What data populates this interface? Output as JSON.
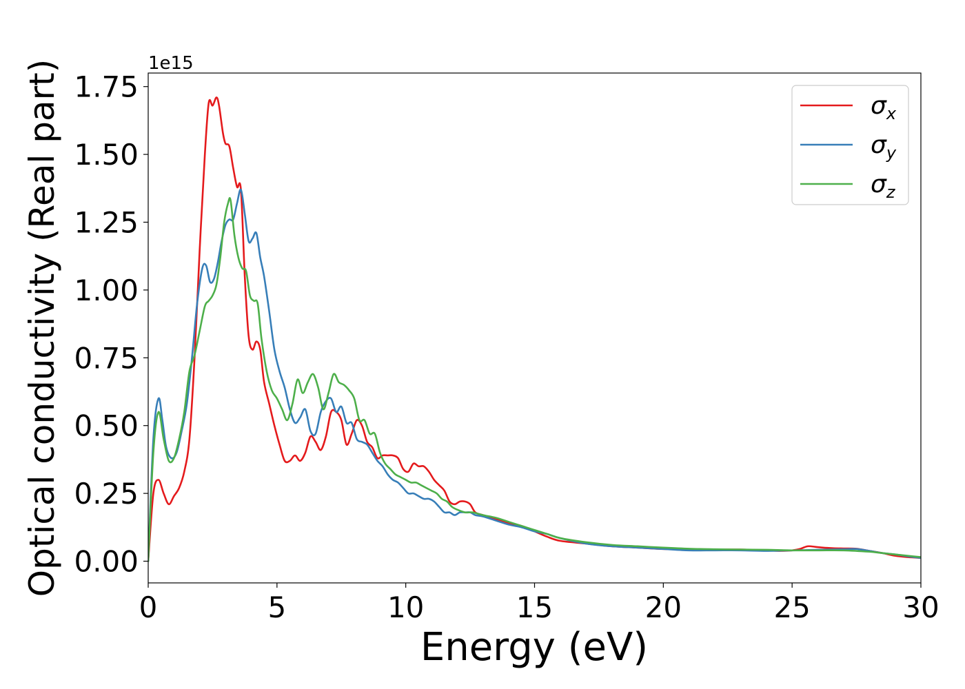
{
  "chart_data": {
    "type": "line",
    "xlabel": "Energy (eV)",
    "ylabel": "Optical conductivity (Real part)",
    "y_offset_label": "1e15",
    "xlim": [
      0,
      30
    ],
    "ylim": [
      -0.08,
      1.8
    ],
    "y_scale_factor": 1000000000000000.0,
    "xticks": [
      0,
      5,
      10,
      15,
      20,
      25,
      30
    ],
    "xtick_labels": [
      "0",
      "5",
      "10",
      "15",
      "20",
      "25",
      "30"
    ],
    "yticks": [
      0.0,
      0.25,
      0.5,
      0.75,
      1.0,
      1.25,
      1.5,
      1.75
    ],
    "ytick_labels": [
      "0.00",
      "0.25",
      "0.50",
      "0.75",
      "1.00",
      "1.25",
      "1.50",
      "1.75"
    ],
    "grid": false,
    "legend_position": "top-right",
    "series": [
      {
        "name": "σx",
        "base": "σ",
        "sub": "x",
        "color": "#e41a1c",
        "x": [
          0,
          0.2,
          0.4,
          0.6,
          0.8,
          1.0,
          1.2,
          1.4,
          1.6,
          1.8,
          2.0,
          2.2,
          2.35,
          2.5,
          2.65,
          2.75,
          2.9,
          3.0,
          3.15,
          3.3,
          3.45,
          3.6,
          3.75,
          3.9,
          4.05,
          4.2,
          4.35,
          4.5,
          4.7,
          4.9,
          5.1,
          5.3,
          5.5,
          5.7,
          5.9,
          6.1,
          6.3,
          6.5,
          6.7,
          6.9,
          7.1,
          7.3,
          7.5,
          7.7,
          7.9,
          8.1,
          8.3,
          8.5,
          8.7,
          8.9,
          9.1,
          9.3,
          9.5,
          9.7,
          9.9,
          10.1,
          10.3,
          10.5,
          10.7,
          10.9,
          11.1,
          11.3,
          11.5,
          11.7,
          11.9,
          12.1,
          12.3,
          12.5,
          12.7,
          13.0,
          13.5,
          14.0,
          14.5,
          15.0,
          15.5,
          16.0,
          17.0,
          18.0,
          19.0,
          20.0,
          21.0,
          22.0,
          23.0,
          24.0,
          24.5,
          25.0,
          25.3,
          25.6,
          25.9,
          26.2,
          26.6,
          27.0,
          27.5,
          28.0,
          28.5,
          29.0,
          29.5,
          30.0
        ],
        "y": [
          0.0,
          0.25,
          0.3,
          0.25,
          0.21,
          0.24,
          0.27,
          0.33,
          0.45,
          0.75,
          1.15,
          1.5,
          1.69,
          1.68,
          1.71,
          1.68,
          1.58,
          1.54,
          1.53,
          1.45,
          1.38,
          1.37,
          1.05,
          0.83,
          0.78,
          0.81,
          0.78,
          0.66,
          0.58,
          0.5,
          0.43,
          0.37,
          0.37,
          0.39,
          0.37,
          0.4,
          0.46,
          0.44,
          0.41,
          0.46,
          0.55,
          0.55,
          0.52,
          0.43,
          0.47,
          0.52,
          0.5,
          0.44,
          0.42,
          0.38,
          0.39,
          0.39,
          0.39,
          0.38,
          0.34,
          0.33,
          0.36,
          0.35,
          0.35,
          0.33,
          0.3,
          0.28,
          0.26,
          0.22,
          0.21,
          0.22,
          0.22,
          0.21,
          0.18,
          0.17,
          0.155,
          0.14,
          0.13,
          0.11,
          0.09,
          0.075,
          0.065,
          0.055,
          0.05,
          0.045,
          0.045,
          0.043,
          0.043,
          0.04,
          0.038,
          0.04,
          0.045,
          0.055,
          0.053,
          0.05,
          0.048,
          0.047,
          0.046,
          0.038,
          0.03,
          0.02,
          0.015,
          0.012
        ]
      },
      {
        "name": "σy",
        "base": "σ",
        "sub": "y",
        "color": "#377eb8",
        "x": [
          0,
          0.2,
          0.4,
          0.55,
          0.7,
          0.9,
          1.1,
          1.3,
          1.5,
          1.7,
          1.9,
          2.1,
          2.25,
          2.4,
          2.55,
          2.7,
          2.85,
          3.0,
          3.15,
          3.3,
          3.45,
          3.6,
          3.75,
          3.9,
          4.05,
          4.2,
          4.35,
          4.5,
          4.7,
          4.9,
          5.1,
          5.3,
          5.5,
          5.7,
          5.9,
          6.1,
          6.3,
          6.5,
          6.7,
          6.9,
          7.1,
          7.3,
          7.5,
          7.7,
          7.9,
          8.1,
          8.3,
          8.5,
          8.7,
          8.9,
          9.1,
          9.3,
          9.5,
          9.7,
          9.9,
          10.1,
          10.3,
          10.5,
          10.7,
          10.9,
          11.1,
          11.3,
          11.5,
          11.7,
          11.9,
          12.1,
          12.3,
          12.5,
          12.7,
          13.0,
          13.5,
          14.0,
          14.5,
          15.0,
          15.5,
          16.0,
          17.0,
          18.0,
          19.0,
          20.0,
          21.0,
          22.0,
          23.0,
          24.0,
          25.0,
          26.0,
          27.0,
          27.5,
          28.0,
          28.5,
          29.0,
          29.5,
          30.0
        ],
        "y": [
          0.0,
          0.45,
          0.6,
          0.52,
          0.42,
          0.38,
          0.4,
          0.48,
          0.58,
          0.75,
          0.95,
          1.08,
          1.09,
          1.03,
          1.04,
          1.1,
          1.18,
          1.24,
          1.26,
          1.26,
          1.32,
          1.37,
          1.28,
          1.18,
          1.19,
          1.21,
          1.12,
          1.05,
          0.92,
          0.78,
          0.7,
          0.64,
          0.56,
          0.51,
          0.53,
          0.56,
          0.48,
          0.47,
          0.55,
          0.59,
          0.6,
          0.55,
          0.57,
          0.51,
          0.51,
          0.45,
          0.44,
          0.43,
          0.4,
          0.37,
          0.35,
          0.32,
          0.3,
          0.29,
          0.27,
          0.25,
          0.25,
          0.24,
          0.23,
          0.23,
          0.22,
          0.2,
          0.18,
          0.18,
          0.17,
          0.18,
          0.18,
          0.18,
          0.17,
          0.165,
          0.15,
          0.135,
          0.125,
          0.11,
          0.1,
          0.085,
          0.065,
          0.055,
          0.05,
          0.045,
          0.04,
          0.04,
          0.04,
          0.038,
          0.04,
          0.042,
          0.044,
          0.045,
          0.038,
          0.03,
          0.025,
          0.018,
          0.012
        ]
      },
      {
        "name": "σz",
        "base": "σ",
        "sub": "z",
        "color": "#4daf4a",
        "x": [
          0,
          0.2,
          0.4,
          0.6,
          0.8,
          1.0,
          1.2,
          1.4,
          1.6,
          1.8,
          2.0,
          2.2,
          2.35,
          2.5,
          2.65,
          2.8,
          2.95,
          3.1,
          3.2,
          3.35,
          3.5,
          3.65,
          3.8,
          3.95,
          4.1,
          4.25,
          4.4,
          4.6,
          4.8,
          5.0,
          5.2,
          5.4,
          5.6,
          5.8,
          6.0,
          6.2,
          6.4,
          6.6,
          6.8,
          7.0,
          7.2,
          7.4,
          7.6,
          7.8,
          8.0,
          8.2,
          8.4,
          8.6,
          8.8,
          9.0,
          9.2,
          9.4,
          9.6,
          9.8,
          10.0,
          10.2,
          10.4,
          10.6,
          10.8,
          11.0,
          11.2,
          11.4,
          11.6,
          11.8,
          12.0,
          12.3,
          12.6,
          13.0,
          13.5,
          14.0,
          14.5,
          15.0,
          15.5,
          16.0,
          17.0,
          18.0,
          19.0,
          20.0,
          21.0,
          22.0,
          23.0,
          24.0,
          25.0,
          26.0,
          27.0,
          28.0,
          28.5,
          29.0,
          29.5,
          30.0
        ],
        "y": [
          0.0,
          0.4,
          0.55,
          0.45,
          0.37,
          0.38,
          0.45,
          0.55,
          0.7,
          0.76,
          0.85,
          0.94,
          0.96,
          0.98,
          1.02,
          1.12,
          1.25,
          1.32,
          1.33,
          1.2,
          1.12,
          1.08,
          1.07,
          0.98,
          0.96,
          0.95,
          0.82,
          0.7,
          0.63,
          0.6,
          0.56,
          0.52,
          0.58,
          0.67,
          0.62,
          0.66,
          0.69,
          0.64,
          0.56,
          0.62,
          0.69,
          0.66,
          0.65,
          0.63,
          0.6,
          0.52,
          0.52,
          0.47,
          0.47,
          0.4,
          0.36,
          0.34,
          0.32,
          0.31,
          0.3,
          0.29,
          0.29,
          0.28,
          0.27,
          0.26,
          0.25,
          0.23,
          0.22,
          0.2,
          0.19,
          0.18,
          0.18,
          0.17,
          0.16,
          0.145,
          0.13,
          0.115,
          0.1,
          0.085,
          0.07,
          0.06,
          0.055,
          0.05,
          0.046,
          0.044,
          0.043,
          0.042,
          0.04,
          0.04,
          0.04,
          0.035,
          0.03,
          0.025,
          0.02,
          0.015
        ]
      }
    ]
  }
}
